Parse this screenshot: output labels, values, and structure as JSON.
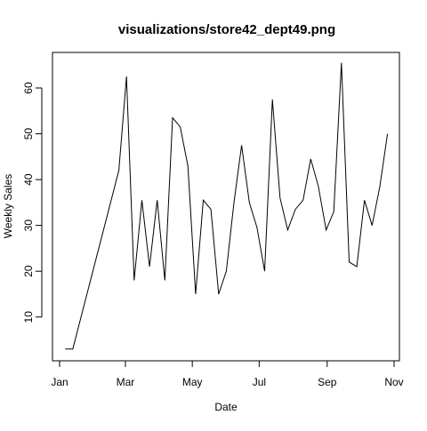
{
  "chart_data": {
    "type": "line",
    "title": "visualizations/store42_dept49.png",
    "xlabel": "Date",
    "ylabel": "Weekly Sales",
    "x_ticks": [
      "Jan",
      "Mar",
      "May",
      "Jul",
      "Sep",
      "Nov"
    ],
    "y_ticks": [
      10,
      20,
      30,
      40,
      50,
      60
    ],
    "ylim": [
      0,
      68
    ],
    "grid": false,
    "legend": "none",
    "series_color": "#000000",
    "series": [
      {
        "x": [
          "2012-01-06",
          "2012-01-13",
          "2012-02-24",
          "2012-03-02",
          "2012-03-09",
          "2012-03-16",
          "2012-03-23",
          "2012-03-30",
          "2012-04-06",
          "2012-04-13",
          "2012-04-20",
          "2012-04-27",
          "2012-05-04",
          "2012-05-11",
          "2012-05-18",
          "2012-05-25",
          "2012-06-01",
          "2012-06-08",
          "2012-06-15",
          "2012-06-22",
          "2012-06-29",
          "2012-07-06",
          "2012-07-13",
          "2012-07-20",
          "2012-07-27",
          "2012-08-03",
          "2012-08-10",
          "2012-08-17",
          "2012-08-24",
          "2012-08-31",
          "2012-09-07",
          "2012-09-14",
          "2012-09-21",
          "2012-09-28",
          "2012-10-05",
          "2012-10-12",
          "2012-10-19",
          "2012-10-26"
        ],
        "y": [
          3,
          3,
          42,
          62.5,
          18,
          35.5,
          21,
          35.5,
          18,
          53.5,
          51.5,
          43,
          15,
          35.5,
          33.5,
          15,
          20,
          35,
          47.5,
          35,
          29.5,
          20,
          57.5,
          36,
          29,
          33.5,
          35.5,
          44.5,
          38.5,
          29,
          33,
          65.5,
          22,
          21,
          35.5,
          30,
          38.5,
          50
        ]
      }
    ]
  }
}
